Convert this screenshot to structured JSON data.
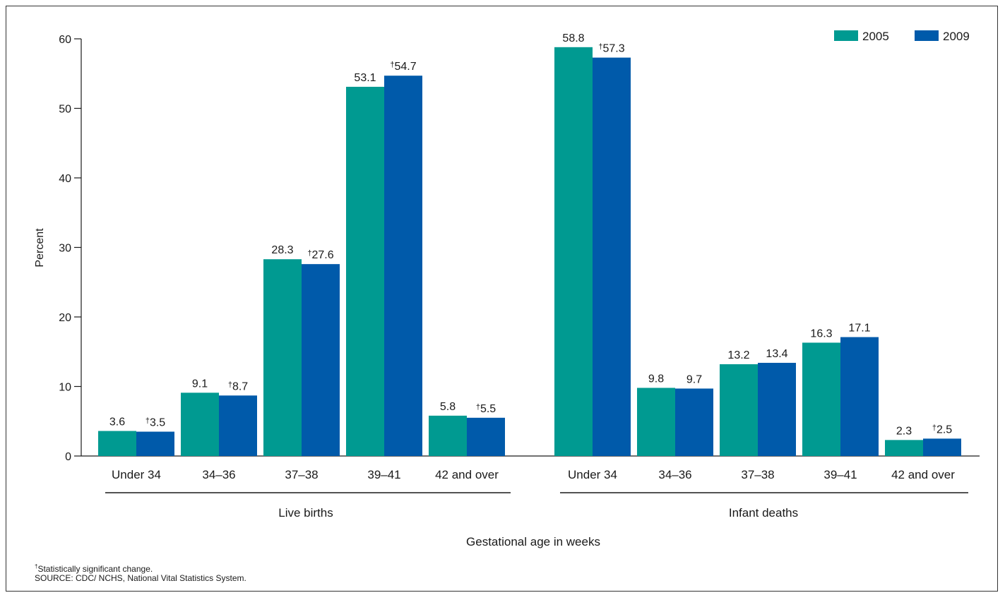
{
  "chart_data": {
    "type": "bar",
    "title": "",
    "ylabel": "Percent",
    "xlabel": "Gestational age in weeks",
    "ylim": [
      0,
      60
    ],
    "yticks": [
      0,
      10,
      20,
      30,
      40,
      50,
      60
    ],
    "grid": false,
    "legend_position": "top-right",
    "colors": {
      "2005": "#009a91",
      "2009": "#005aaa"
    },
    "legend": [
      "2005",
      "2009"
    ],
    "groups": [
      {
        "label": "Live births",
        "categories": [
          "Under 34",
          "34–36",
          "37–38",
          "39–41",
          "42 and over"
        ],
        "series": [
          {
            "name": "2005",
            "values": [
              3.6,
              9.1,
              28.3,
              53.1,
              5.8
            ],
            "labels": [
              "3.6",
              "9.1",
              "28.3",
              "53.1",
              "5.8"
            ]
          },
          {
            "name": "2009",
            "values": [
              3.5,
              8.7,
              27.6,
              54.7,
              5.5
            ],
            "labels": [
              "†3.5",
              "†8.7",
              "†27.6",
              "†54.7",
              "†5.5"
            ]
          }
        ]
      },
      {
        "label": "Infant deaths",
        "categories": [
          "Under 34",
          "34–36",
          "37–38",
          "39–41",
          "42 and over"
        ],
        "series": [
          {
            "name": "2005",
            "values": [
              58.8,
              9.8,
              13.2,
              16.3,
              2.3
            ],
            "labels": [
              "58.8",
              "9.8",
              "13.2",
              "16.3",
              "2.3"
            ]
          },
          {
            "name": "2009",
            "values": [
              57.3,
              9.7,
              13.4,
              17.1,
              2.5
            ],
            "labels": [
              "†57.3",
              "9.7",
              "13.4",
              "17.1",
              "†2.5"
            ]
          }
        ]
      }
    ]
  },
  "footnotes": {
    "significance": "Statistically significant change.",
    "significance_mark": "†",
    "source": "SOURCE: CDC/ NCHS, National Vital Statistics System."
  }
}
